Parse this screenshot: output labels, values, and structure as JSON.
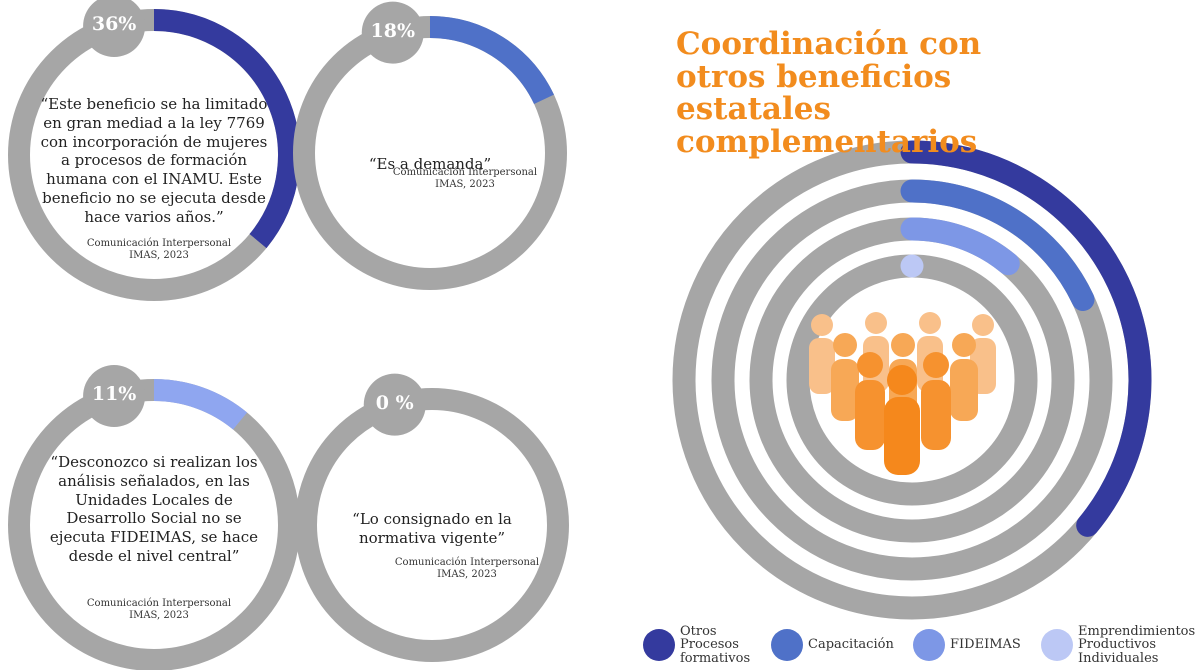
{
  "chart_data": [
    {
      "type": "gauge",
      "values": [
        36
      ],
      "value_labels": [
        "36%"
      ],
      "color": "#343a9e",
      "ylim": [
        0,
        100
      ],
      "annotations": [
        "“Este beneficio se ha limitado en gran mediad a la ley 7769 con incorporación de mujeres a procesos de formación humana con el INAMU. Este beneficio no se ejecuta desde hace varios años.”",
        "Comunicación Interpersonal IMAS, 2023"
      ]
    },
    {
      "type": "gauge",
      "values": [
        18
      ],
      "value_labels": [
        "18%"
      ],
      "color": "#4f71c8",
      "ylim": [
        0,
        100
      ],
      "annotations": [
        "“Es a demanda”",
        "Comunicación Interpersonal IMAS, 2023"
      ]
    },
    {
      "type": "gauge",
      "values": [
        11
      ],
      "value_labels": [
        "11%"
      ],
      "color": "#8fa6f0",
      "ylim": [
        0,
        100
      ],
      "annotations": [
        "“Desconozco si realizan los análisis señalados, en las Unidades Locales de Desarrollo Social no se ejecuta FIDEIMAS, se hace desde el nivel central”",
        "Comunicación Interpersonal IMAS, 2023"
      ]
    },
    {
      "type": "gauge",
      "values": [
        0
      ],
      "value_labels": [
        "0 %"
      ],
      "color": "#8fa6f0",
      "ylim": [
        0,
        100
      ],
      "annotations": [
        "“Lo consignado en la normativa vigente”",
        "Comunicación Interpersonal IMAS, 2023"
      ]
    },
    {
      "type": "radial_bar",
      "title": "Coordinación con otros beneficios estatales complementarios",
      "ylim": [
        0,
        100
      ],
      "series": [
        {
          "name": "Otros Procesos formativos",
          "color": "#343a9e",
          "values": [
            36
          ]
        },
        {
          "name": "Capacitación",
          "color": "#4f71c8",
          "values": [
            18
          ]
        },
        {
          "name": "FIDEIMAS",
          "color": "#7d97e6",
          "values": [
            11
          ]
        },
        {
          "name": "Emprendimientos Productivos Individuales",
          "color": "#bcc8f5",
          "values": [
            0
          ]
        }
      ]
    }
  ]
}
